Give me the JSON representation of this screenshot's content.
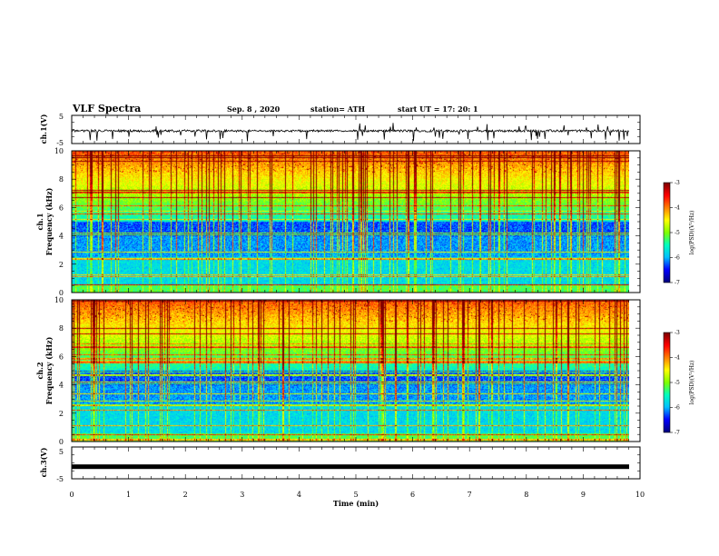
{
  "header": {
    "title": "VLF Spectra",
    "date": "Sep. 8 , 2020",
    "station": "station= ATH",
    "start": "start UT = 17: 20: 1"
  },
  "colors": {
    "waveform": "#000000",
    "colormap": [
      "#00007f",
      "#0000ff",
      "#00bfff",
      "#00ffbf",
      "#7fff00",
      "#ffff00",
      "#ff8000",
      "#ff0000",
      "#7f0000"
    ]
  },
  "chart_data": [
    {
      "type": "line",
      "ylabel": "ch.1(V)",
      "ylim": [
        -5,
        5
      ],
      "yticks": [
        "5",
        "-5"
      ],
      "description_values": {
        "baseline_V": -0.5,
        "typical_spike_V": -2.5
      }
    },
    {
      "type": "heatmap",
      "ylabel": "ch.1 Frequency (kHz)",
      "ylim": [
        0,
        10
      ],
      "yticks": [
        "0",
        "2",
        "4",
        "6",
        "8",
        "10"
      ],
      "colorbar": {
        "label": "log(PSD)(V²/Hz)",
        "range": [
          -7,
          -3
        ],
        "ticks": [
          "-3",
          "-4",
          "-5",
          "-6",
          "-7"
        ]
      }
    },
    {
      "type": "heatmap",
      "ylabel": "ch.2 Frequency (kHz)",
      "ylim": [
        0,
        10
      ],
      "yticks": [
        "0",
        "2",
        "4",
        "6",
        "8",
        "10"
      ],
      "colorbar": {
        "label": "log(PSD)(V²/Hz)",
        "range": [
          -7,
          -3
        ],
        "ticks": [
          "-3",
          "-4",
          "-5",
          "-6",
          "-7"
        ]
      }
    },
    {
      "type": "line",
      "ylabel": "ch.3(V)",
      "ylim": [
        -5,
        5
      ],
      "yticks": [
        "5",
        "-5"
      ],
      "description_values": {
        "baseline_V": -1.2
      }
    }
  ],
  "xaxis": {
    "label": "Time (min)",
    "range": [
      0,
      10
    ],
    "ticks": [
      "0",
      "1",
      "2",
      "3",
      "4",
      "5",
      "6",
      "7",
      "8",
      "9",
      "10"
    ]
  }
}
